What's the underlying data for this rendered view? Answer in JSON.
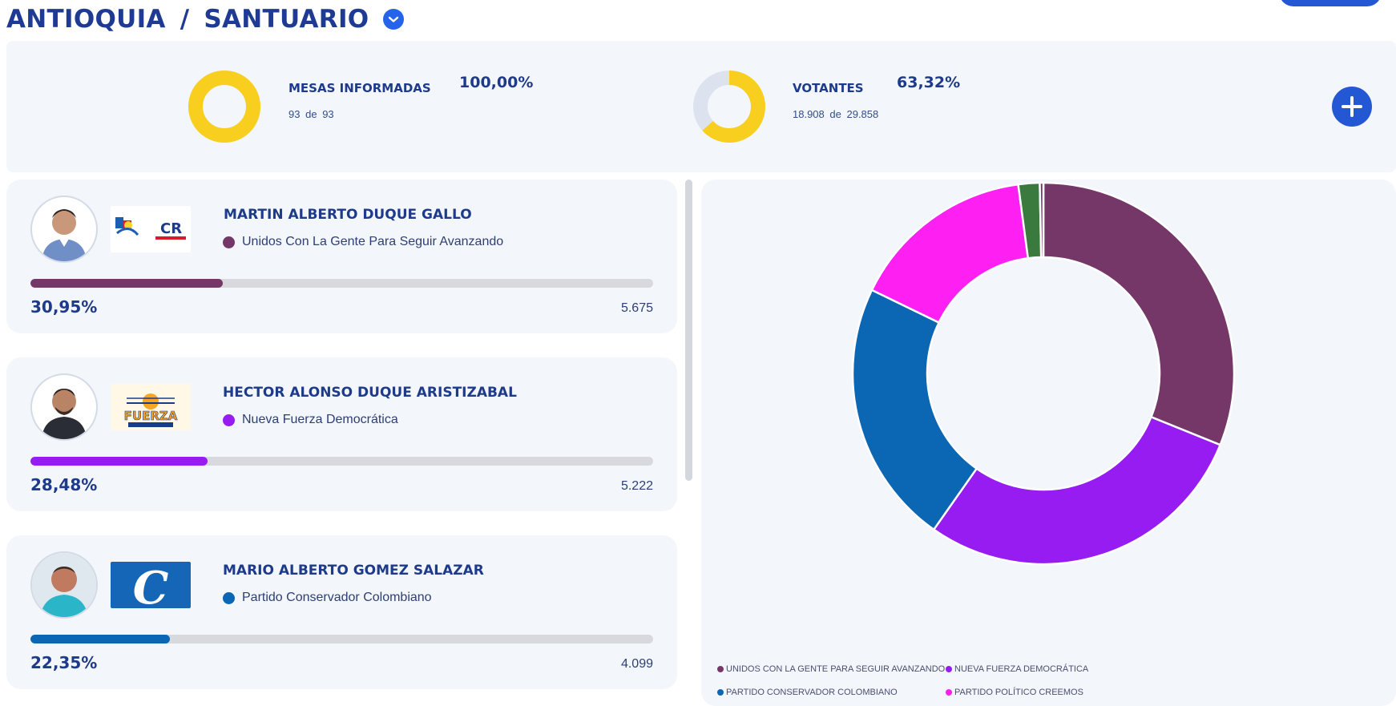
{
  "header": {
    "department": "ANTIOQUIA",
    "separator": "/",
    "municipality": "SANTUARIO",
    "dropdown_icon": "chevron-down-icon"
  },
  "stats": {
    "mesas": {
      "label": "MESAS INFORMADAS",
      "percent": "100,00%",
      "fraction": 1.0,
      "count": "93",
      "of": "de",
      "total": "93"
    },
    "votantes": {
      "label": "VOTANTES",
      "percent": "63,32%",
      "fraction": 0.6332,
      "count": "18.908",
      "of": "de",
      "total": "29.858"
    },
    "expand_icon": "plus-icon",
    "ring_color": "#f8cf1f",
    "ring_track_color": "#dde3ee"
  },
  "candidates": [
    {
      "name": "MARTIN ALBERTO DUQUE GALLO",
      "party": "Unidos Con La Gente Para Seguir Avanzando",
      "percent": "30,95%",
      "share": 0.3095,
      "votes": "5.675",
      "color": "#743768",
      "logo": "unidos-cambio-radical-logo",
      "logo_text": "CR"
    },
    {
      "name": "HECTOR ALONSO DUQUE ARISTIZABAL",
      "party": "Nueva Fuerza Democrática",
      "percent": "28,48%",
      "share": 0.2848,
      "votes": "5.222",
      "color": "#961cf2",
      "logo": "nueva-fuerza-democratica-logo",
      "logo_text": "FUERZA"
    },
    {
      "name": "MARIO ALBERTO GOMEZ SALAZAR",
      "party": "Partido Conservador Colombiano",
      "percent": "22,35%",
      "share": 0.2235,
      "votes": "4.099",
      "color": "#0b66b3",
      "logo": "partido-conservador-logo",
      "logo_text": "C"
    }
  ],
  "chart_data": {
    "type": "pie",
    "series": [
      {
        "name": "UNIDOS CON LA GENTE PARA SEGUIR AVANZANDO",
        "value": 30.95,
        "color": "#743768"
      },
      {
        "name": "NUEVA FUERZA DEMOCRÁTICA",
        "value": 28.48,
        "color": "#961cf2"
      },
      {
        "name": "PARTIDO CONSERVADOR COLOMBIANO",
        "value": 22.35,
        "color": "#0b66b3"
      },
      {
        "name": "PARTIDO POLÍTICO CREEMOS",
        "value": 15.6,
        "color": "#fe1ff2"
      },
      {
        "name": "",
        "value": 1.8,
        "color": "#3a7a3f"
      },
      {
        "name": "",
        "value": 0.3,
        "color": "#743768"
      }
    ],
    "legend_position": "bottom"
  }
}
